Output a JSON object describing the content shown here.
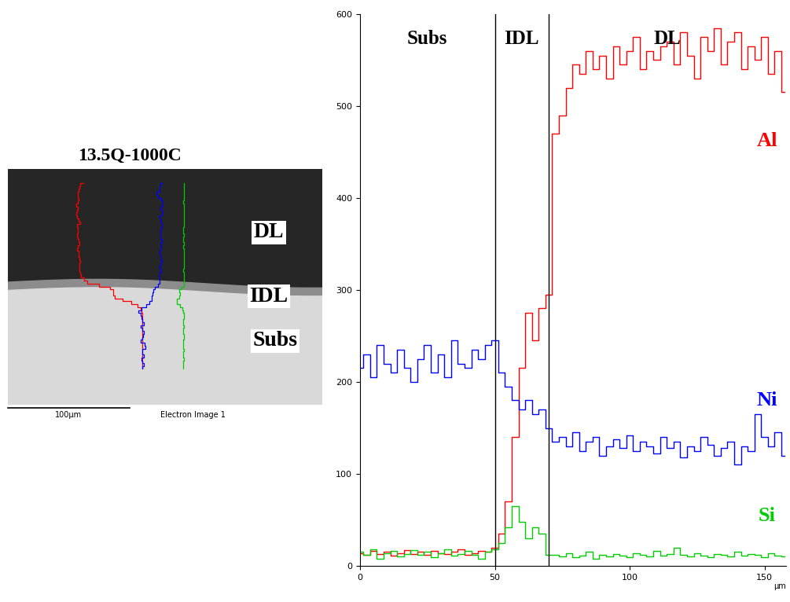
{
  "chart_data": {
    "type": "line",
    "x": [
      0,
      2.5,
      5,
      7.5,
      10,
      12.5,
      15,
      17.5,
      20,
      22.5,
      25,
      27.5,
      30,
      32.5,
      35,
      37.5,
      40,
      42.5,
      45,
      47.5,
      50,
      52.5,
      55,
      57.5,
      60,
      62.5,
      65,
      67.5,
      70,
      72.5,
      75,
      77.5,
      80,
      82.5,
      85,
      87.5,
      90,
      92.5,
      95,
      97.5,
      100,
      102.5,
      105,
      107.5,
      110,
      112.5,
      115,
      117.5,
      120,
      122.5,
      125,
      127.5,
      130,
      132.5,
      135,
      137.5,
      140,
      142.5,
      145,
      147.5,
      150,
      152.5,
      155,
      157.5
    ],
    "xlim": [
      0,
      158
    ],
    "xticks": [
      0,
      50,
      100,
      150
    ],
    "xlabel": "µm",
    "ylim": [
      0,
      600
    ],
    "yticks": [
      0,
      100,
      200,
      300,
      400,
      500,
      600
    ],
    "grid": false,
    "regions": [
      {
        "label": "Subs",
        "from": 0,
        "to": 50
      },
      {
        "label": "IDL",
        "from": 50,
        "to": 70
      },
      {
        "label": "DL",
        "from": 70,
        "to": 158
      }
    ],
    "series": [
      {
        "name": "Al",
        "color": "#ff0000",
        "values": [
          14,
          12,
          16,
          13,
          15,
          11,
          14,
          17,
          13,
          15,
          12,
          16,
          14,
          13,
          15,
          18,
          12,
          14,
          16,
          15,
          20,
          35,
          70,
          140,
          215,
          275,
          245,
          280,
          295,
          470,
          490,
          520,
          545,
          535,
          560,
          540,
          555,
          530,
          565,
          545,
          560,
          575,
          540,
          560,
          550,
          565,
          570,
          545,
          580,
          555,
          530,
          575,
          560,
          585,
          545,
          570,
          580,
          540,
          565,
          550,
          575,
          535,
          560,
          515
        ]
      },
      {
        "name": "Ni",
        "color": "#0000ff",
        "values": [
          215,
          230,
          205,
          240,
          220,
          210,
          235,
          215,
          200,
          225,
          240,
          210,
          230,
          205,
          245,
          220,
          215,
          235,
          225,
          240,
          245,
          210,
          195,
          180,
          170,
          180,
          165,
          170,
          150,
          135,
          140,
          130,
          145,
          125,
          135,
          140,
          120,
          130,
          138,
          128,
          142,
          125,
          135,
          130,
          122,
          140,
          128,
          135,
          118,
          130,
          125,
          140,
          132,
          120,
          128,
          135,
          110,
          130,
          125,
          165,
          140,
          130,
          145,
          120
        ]
      },
      {
        "name": "Si",
        "color": "#00cc00",
        "values": [
          15,
          12,
          18,
          8,
          14,
          16,
          10,
          13,
          17,
          12,
          15,
          9,
          14,
          18,
          11,
          13,
          16,
          12,
          8,
          15,
          18,
          25,
          42,
          65,
          48,
          30,
          42,
          35,
          12,
          12,
          10,
          14,
          9,
          11,
          15,
          8,
          12,
          10,
          13,
          11,
          9,
          14,
          12,
          10,
          16,
          11,
          13,
          20,
          12,
          10,
          14,
          11,
          9,
          13,
          12,
          10,
          15,
          11,
          13,
          12,
          9,
          14,
          11,
          10
        ]
      }
    ]
  },
  "image": {
    "title": "13.5Q-1000C",
    "labels": [
      "DL",
      "IDL",
      "Subs"
    ],
    "scale_bar": "100µm",
    "caption": "Electron Image 1"
  }
}
